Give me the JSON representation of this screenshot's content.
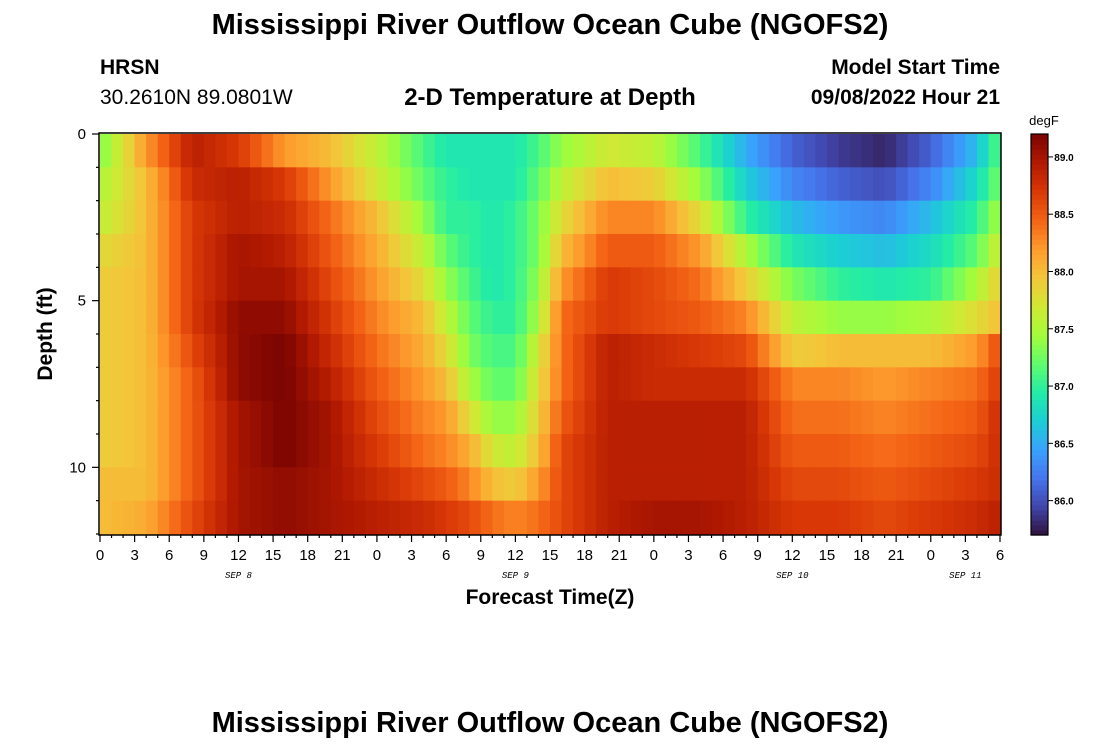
{
  "header": {
    "title": "Mississippi River Outflow Ocean Cube (NGOFS2)",
    "station_name": "HRSN",
    "station_coords": "30.2610N  89.0801W",
    "plot_title": "2-D Temperature at Depth",
    "model_start_label": "Model Start Time",
    "model_start_value": "09/08/2022 Hour 21"
  },
  "footer": {
    "title": "Mississippi River Outflow Ocean Cube (NGOFS2)"
  },
  "colors": {
    "colormap": [
      "#30123b",
      "#4145ab",
      "#4675ed",
      "#39a2fc",
      "#1bcfd4",
      "#24eca6",
      "#61fc6c",
      "#a4fc3b",
      "#d1e834",
      "#f3c63a",
      "#fe9b2d",
      "#f36315",
      "#d93806",
      "#b11901",
      "#7a0402"
    ]
  },
  "chart_data": {
    "type": "heatmap",
    "title": "2-D Temperature at Depth",
    "xlabel": "Forecast Time(Z)",
    "ylabel": "Depth (ft)",
    "x_ticks": [
      "0",
      "3",
      "6",
      "9",
      "12",
      "15",
      "18",
      "21",
      "0",
      "3",
      "6",
      "9",
      "12",
      "15",
      "18",
      "21",
      "0",
      "3",
      "6",
      "9",
      "12",
      "15",
      "18",
      "21",
      "0",
      "3",
      "6"
    ],
    "x_range_hours": [
      0,
      78
    ],
    "date_labels": [
      {
        "label": "SEP 8",
        "hour": 12
      },
      {
        "label": "SEP 9",
        "hour": 36
      },
      {
        "label": "SEP 10",
        "hour": 60
      },
      {
        "label": "SEP 11",
        "hour": 75
      }
    ],
    "y_ticks": [
      "0",
      "5",
      "10"
    ],
    "y_tick_values": [
      0,
      5,
      10
    ],
    "y_range_ft": [
      0,
      12
    ],
    "colorbar": {
      "unit": "degF",
      "min": 85.7,
      "max": 89.2,
      "tick_labels": [
        "86.0",
        "86.5",
        "87.0",
        "87.5",
        "88.0",
        "88.5",
        "89.0"
      ],
      "tick_values": [
        86.0,
        86.5,
        87.0,
        87.5,
        88.0,
        88.5,
        89.0
      ]
    },
    "depth_layers_ft": [
      0.5,
      1.5,
      2.5,
      3.5,
      4.5,
      5.5,
      6.5,
      7.5,
      8.5,
      9.5,
      10.5,
      11.5
    ],
    "profile_hours": [
      0,
      4,
      8,
      12,
      16,
      20,
      24,
      28,
      30,
      32,
      34,
      36,
      38,
      40,
      44,
      48,
      52,
      56,
      60,
      64,
      68,
      72,
      76,
      78
    ],
    "temperature_degF": [
      [
        87.3,
        88.2,
        88.9,
        88.7,
        88.2,
        88.0,
        87.6,
        87.1,
        86.9,
        86.9,
        86.9,
        86.9,
        87.1,
        87.4,
        87.7,
        87.6,
        87.1,
        86.5,
        86.1,
        85.9,
        85.8,
        86.1,
        86.6,
        87.2
      ],
      [
        87.5,
        88.0,
        88.8,
        88.9,
        88.7,
        88.2,
        87.7,
        87.2,
        87.0,
        86.9,
        86.9,
        86.9,
        87.2,
        87.6,
        88.0,
        87.9,
        87.4,
        86.7,
        86.3,
        86.1,
        86.0,
        86.3,
        86.8,
        87.3
      ],
      [
        87.6,
        88.0,
        88.7,
        88.9,
        88.8,
        88.4,
        88.0,
        87.4,
        87.0,
        87.0,
        86.9,
        87.0,
        87.3,
        87.8,
        88.3,
        88.3,
        87.8,
        87.0,
        86.6,
        86.4,
        86.3,
        86.6,
        87.0,
        87.5
      ],
      [
        87.8,
        88.0,
        88.7,
        89.0,
        88.9,
        88.5,
        88.1,
        87.6,
        87.2,
        87.0,
        86.9,
        87.0,
        87.3,
        88.0,
        88.5,
        88.5,
        88.2,
        87.5,
        86.9,
        86.7,
        86.6,
        86.8,
        87.2,
        87.7
      ],
      [
        87.9,
        88.0,
        88.7,
        89.0,
        89.0,
        88.6,
        88.2,
        87.8,
        87.4,
        87.1,
        86.9,
        87.0,
        87.4,
        88.2,
        88.7,
        88.6,
        88.4,
        87.9,
        87.3,
        87.0,
        86.9,
        87.0,
        87.5,
        87.9
      ],
      [
        87.9,
        88.0,
        88.7,
        89.1,
        89.1,
        88.7,
        88.3,
        88.0,
        87.6,
        87.2,
        87.0,
        87.0,
        87.5,
        88.4,
        88.7,
        88.6,
        88.5,
        88.3,
        87.6,
        87.4,
        87.4,
        87.5,
        87.8,
        88.0
      ],
      [
        87.9,
        88.0,
        88.6,
        89.1,
        89.2,
        88.8,
        88.4,
        88.1,
        87.8,
        87.3,
        87.1,
        87.1,
        87.7,
        88.4,
        88.9,
        88.8,
        88.7,
        88.6,
        87.9,
        88.0,
        88.0,
        88.0,
        88.2,
        88.6
      ],
      [
        87.9,
        88.0,
        88.5,
        89.1,
        89.2,
        88.9,
        88.5,
        88.2,
        88.0,
        87.5,
        87.2,
        87.2,
        87.8,
        88.4,
        88.9,
        88.8,
        88.8,
        88.8,
        88.3,
        88.3,
        88.2,
        88.3,
        88.4,
        88.7
      ],
      [
        87.9,
        88.0,
        88.5,
        89.0,
        89.2,
        89.0,
        88.6,
        88.3,
        88.2,
        87.8,
        87.4,
        87.4,
        87.9,
        88.5,
        88.9,
        88.9,
        88.9,
        88.9,
        88.4,
        88.4,
        88.3,
        88.4,
        88.5,
        88.8
      ],
      [
        87.9,
        88.0,
        88.5,
        89.0,
        89.2,
        89.0,
        88.7,
        88.4,
        88.3,
        88.1,
        87.7,
        87.6,
        88.0,
        88.6,
        88.9,
        88.9,
        88.9,
        88.9,
        88.5,
        88.5,
        88.4,
        88.5,
        88.6,
        88.8
      ],
      [
        88.0,
        88.0,
        88.5,
        89.0,
        89.1,
        89.0,
        88.8,
        88.6,
        88.5,
        88.3,
        88.0,
        87.9,
        88.2,
        88.6,
        88.9,
        88.9,
        88.9,
        88.9,
        88.6,
        88.6,
        88.5,
        88.6,
        88.7,
        88.8
      ],
      [
        88.0,
        88.1,
        88.6,
        89.0,
        89.1,
        89.0,
        88.9,
        88.8,
        88.7,
        88.6,
        88.4,
        88.3,
        88.4,
        88.6,
        88.9,
        89.0,
        89.0,
        88.9,
        88.7,
        88.7,
        88.6,
        88.7,
        88.8,
        88.9
      ]
    ]
  }
}
